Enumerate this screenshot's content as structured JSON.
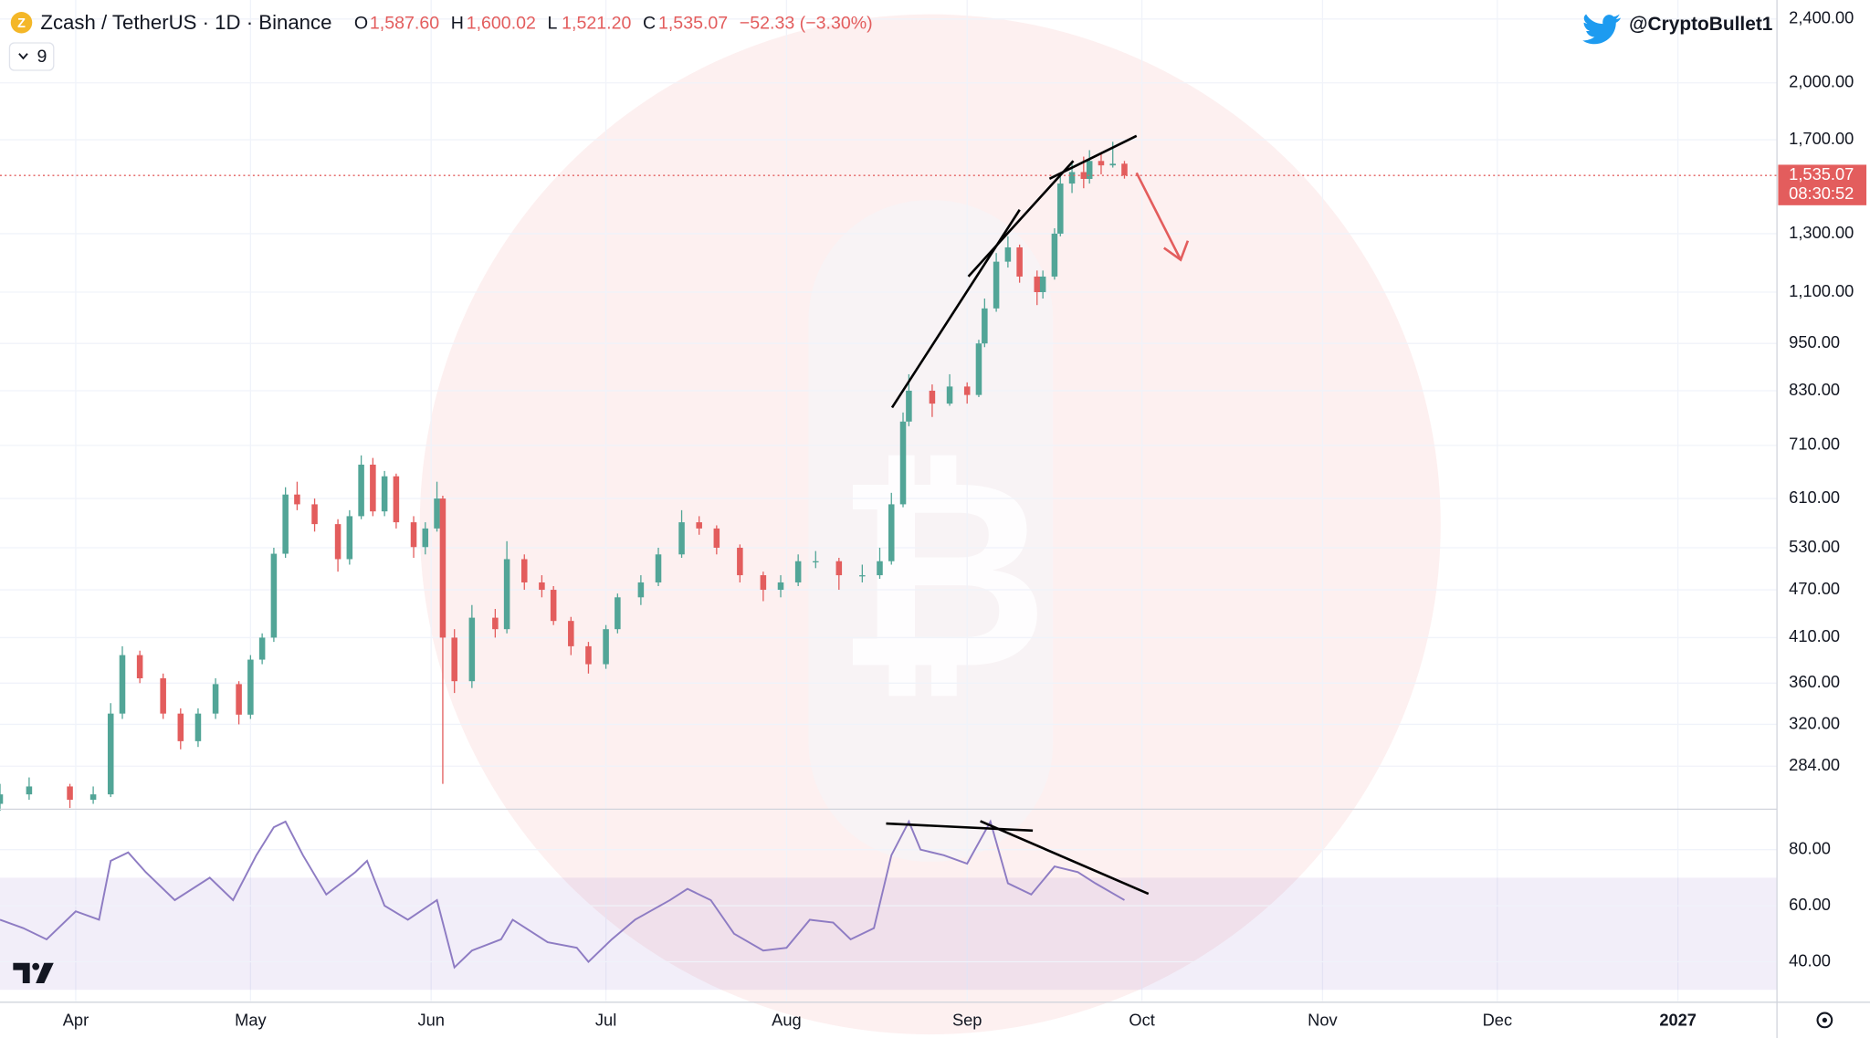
{
  "header": {
    "symbol": "Zcash / TetherUS · 1D · Binance",
    "o_letter": "O",
    "o": "1,587.60",
    "h_letter": "H",
    "h": "1,600.02",
    "l_letter": "L",
    "l": "1,521.20",
    "c_letter": "C",
    "c": "1,535.07",
    "change": "−52.33 (−3.30%)",
    "indicators": "9",
    "handle": "@CryptoBullet1"
  },
  "chart_data": [
    {
      "type": "candlestick",
      "log_scale": true,
      "grid": true,
      "up_color": "#52a597",
      "down_color": "#e35d5d",
      "last_price_label": "1,535.07",
      "countdown": "08:30:52",
      "xlim": [
        "03-19",
        "01-18"
      ],
      "xticks": [
        {
          "value": "04-01",
          "label": "Apr"
        },
        {
          "value": "05-01",
          "label": "May"
        },
        {
          "value": "06-01",
          "label": "Jun"
        },
        {
          "value": "07-01",
          "label": "Jul"
        },
        {
          "value": "08-01",
          "label": "Aug"
        },
        {
          "value": "09-01",
          "label": "Sep"
        },
        {
          "value": "10-01",
          "label": "Oct"
        },
        {
          "value": "11-01",
          "label": "Nov"
        },
        {
          "value": "12-01",
          "label": "Dec"
        },
        {
          "value": "01-01",
          "label": "2027"
        }
      ],
      "ylim": [
        252,
        2534
      ],
      "yticks": [
        {
          "value": 284,
          "label": "284.00"
        },
        {
          "value": 320,
          "label": "320.00"
        },
        {
          "value": 360,
          "label": "360.00"
        },
        {
          "value": 410,
          "label": "410.00"
        },
        {
          "value": 470,
          "label": "470.00"
        },
        {
          "value": 530,
          "label": "530.00"
        },
        {
          "value": 610,
          "label": "610.00"
        },
        {
          "value": 710,
          "label": "710.00"
        },
        {
          "value": 830,
          "label": "830.00"
        },
        {
          "value": 950,
          "label": "950.00"
        },
        {
          "value": 1100,
          "label": "1,100.00"
        },
        {
          "value": 1300,
          "label": "1,300.00"
        },
        {
          "value": 1700,
          "label": "1,700.00"
        },
        {
          "value": 2000,
          "label": "2,000.00"
        },
        {
          "value": 2400,
          "label": "2,400.00"
        }
      ],
      "x": [
        "03-19",
        "03-24",
        "03-31",
        "04-04",
        "04-07",
        "04-09",
        "04-12",
        "04-16",
        "04-19",
        "04-22",
        "04-25",
        "04-29",
        "05-01",
        "05-03",
        "05-05",
        "05-07",
        "05-09",
        "05-12",
        "05-16",
        "05-18",
        "05-20",
        "05-22",
        "05-24",
        "05-26",
        "05-29",
        "05-31",
        "06-02",
        "06-03",
        "06-05",
        "06-08",
        "06-12",
        "06-14",
        "06-17",
        "06-20",
        "06-22",
        "06-25",
        "06-28",
        "07-01",
        "07-03",
        "07-07",
        "07-10",
        "07-14",
        "07-17",
        "07-20",
        "07-24",
        "07-28",
        "07-31",
        "08-03",
        "08-06",
        "08-10",
        "08-14",
        "08-17",
        "08-19",
        "08-21",
        "08-22",
        "08-26",
        "08-29",
        "09-01",
        "09-03",
        "09-04",
        "09-06",
        "09-08",
        "09-10",
        "09-13",
        "09-14",
        "09-16",
        "09-17",
        "09-19",
        "09-21",
        "09-22",
        "09-24",
        "09-26",
        "09-28"
      ],
      "open": [
        255,
        262,
        268,
        258,
        262,
        330,
        390,
        365,
        330,
        305,
        330,
        359,
        329,
        385,
        410,
        521,
        617,
        600,
        567,
        513,
        580,
        672,
        588,
        650,
        570,
        531,
        560,
        610,
        410,
        362,
        434,
        420,
        513,
        480,
        470,
        430,
        400,
        380,
        420,
        460,
        480,
        520,
        570,
        560,
        530,
        490,
        470,
        480,
        510,
        510,
        490,
        490,
        510,
        600,
        760,
        830,
        800,
        840,
        820,
        950,
        1050,
        1200,
        1250,
        1150,
        1100,
        1150,
        1300,
        1500,
        1550,
        1520,
        1600,
        1580,
        1587.6
      ],
      "high": [
        270,
        275,
        270,
        268,
        340,
        400,
        395,
        370,
        335,
        335,
        365,
        362,
        390,
        415,
        530,
        630,
        640,
        610,
        575,
        590,
        690,
        685,
        660,
        655,
        580,
        570,
        640,
        615,
        420,
        450,
        445,
        540,
        520,
        490,
        475,
        435,
        405,
        425,
        465,
        490,
        530,
        590,
        580,
        565,
        535,
        495,
        490,
        520,
        525,
        515,
        505,
        530,
        620,
        780,
        870,
        845,
        870,
        850,
        960,
        1080,
        1230,
        1290,
        1260,
        1170,
        1170,
        1320,
        1530,
        1600,
        1620,
        1650,
        1640,
        1690,
        1600.02
      ],
      "low": [
        250,
        258,
        252,
        255,
        260,
        325,
        360,
        325,
        298,
        300,
        325,
        320,
        325,
        380,
        405,
        515,
        590,
        555,
        495,
        505,
        575,
        580,
        580,
        560,
        515,
        520,
        555,
        270,
        350,
        355,
        410,
        415,
        470,
        460,
        425,
        390,
        370,
        375,
        415,
        450,
        475,
        515,
        550,
        520,
        480,
        455,
        460,
        475,
        500,
        470,
        480,
        485,
        505,
        595,
        750,
        770,
        795,
        800,
        815,
        940,
        1040,
        1180,
        1130,
        1060,
        1080,
        1140,
        1290,
        1460,
        1480,
        1500,
        1540,
        1570,
        1521.2
      ],
      "close": [
        262,
        268,
        258,
        262,
        330,
        390,
        365,
        330,
        305,
        330,
        359,
        329,
        385,
        410,
        521,
        617,
        600,
        567,
        513,
        580,
        672,
        588,
        650,
        570,
        531,
        560,
        610,
        410,
        362,
        434,
        420,
        513,
        480,
        470,
        430,
        400,
        380,
        420,
        460,
        480,
        520,
        570,
        560,
        530,
        490,
        470,
        480,
        510,
        510,
        490,
        490,
        510,
        600,
        760,
        830,
        800,
        840,
        820,
        950,
        1050,
        1200,
        1250,
        1150,
        1100,
        1150,
        1300,
        1500,
        1550,
        1520,
        1600,
        1580,
        1587.4,
        1535.07
      ]
    },
    {
      "type": "line",
      "color": "#8e7cc3",
      "band": [
        30,
        70
      ],
      "xlim": [
        "03-19",
        "01-18"
      ],
      "ylim": [
        26,
        94
      ],
      "yticks": [
        {
          "value": 40,
          "label": "40.00"
        },
        {
          "value": 60,
          "label": "60.00"
        },
        {
          "value": 80,
          "label": "80.00"
        }
      ],
      "x": [
        "03-19",
        "03-23",
        "03-27",
        "04-01",
        "04-05",
        "04-07",
        "04-10",
        "04-13",
        "04-18",
        "04-24",
        "04-28",
        "05-02",
        "05-05",
        "05-07",
        "05-10",
        "05-14",
        "05-19",
        "05-21",
        "05-24",
        "05-28",
        "06-02",
        "06-05",
        "06-08",
        "06-13",
        "06-15",
        "06-21",
        "06-26",
        "06-28",
        "07-02",
        "07-06",
        "07-12",
        "07-15",
        "07-19",
        "07-23",
        "07-28",
        "08-01",
        "08-05",
        "08-09",
        "08-12",
        "08-16",
        "08-19",
        "08-22",
        "08-24",
        "08-28",
        "09-01",
        "09-05",
        "09-08",
        "09-12",
        "09-16",
        "09-20",
        "09-23",
        "09-28"
      ],
      "values": [
        55,
        52,
        48,
        58,
        55,
        76,
        79,
        72,
        62,
        70,
        62,
        78,
        88,
        90,
        78,
        64,
        72,
        76,
        60,
        55,
        62,
        38,
        44,
        48,
        55,
        47,
        45,
        40,
        48,
        55,
        62,
        66,
        62,
        50,
        44,
        45,
        55,
        54,
        48,
        52,
        78,
        90,
        80,
        78,
        75,
        90,
        68,
        64,
        74,
        72,
        68,
        62
      ]
    }
  ]
}
